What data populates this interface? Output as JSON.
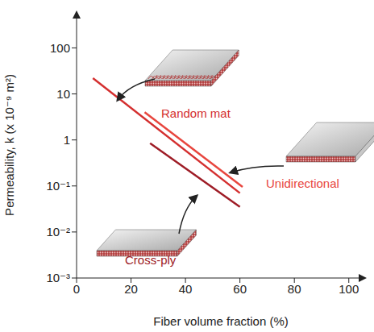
{
  "chart_data": {
    "type": "line",
    "x_label": "Fiber volume fraction (%)",
    "y_label": "Permeability, k (x 10⁻⁹ m²)",
    "log": "y",
    "grid": false,
    "xlim": [
      0,
      106
    ],
    "xticks": [
      0,
      20,
      40,
      60,
      80,
      100
    ],
    "ylim": [
      0.001,
      600
    ],
    "yticks": [
      {
        "value": 0.001,
        "label": "10⁻³"
      },
      {
        "value": 0.01,
        "label": "10⁻²"
      },
      {
        "value": 0.1,
        "label": "10⁻¹"
      },
      1,
      10,
      100
    ],
    "series": [
      {
        "name": "Random mat",
        "color": "#d42f2f",
        "x": [
          6,
          60
        ],
        "values": [
          22,
          0.07
        ]
      },
      {
        "name": "Unidirectional",
        "color": "#e8463e",
        "x": [
          25,
          61
        ],
        "values": [
          4,
          0.095
        ]
      },
      {
        "name": "Cross-ply",
        "color": "#9e1c26",
        "x": [
          27,
          60
        ],
        "values": [
          0.85,
          0.035
        ]
      }
    ]
  }
}
